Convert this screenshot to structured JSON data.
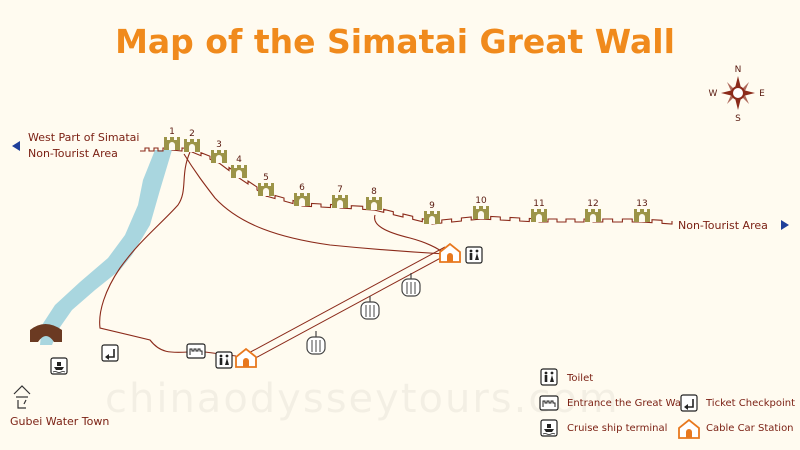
{
  "title": "Map of the Simatai Great Wall",
  "compass": {
    "n": "N",
    "s": "S",
    "e": "E",
    "w": "W"
  },
  "labels": {
    "west_line1": "West Part of Simatai",
    "west_line2": "Non-Tourist Area",
    "east": "Non-Tourist Area",
    "town": "Gubei Water Town"
  },
  "towers": [
    "1",
    "2",
    "3",
    "4",
    "5",
    "6",
    "7",
    "8",
    "9",
    "10",
    "11",
    "12",
    "13"
  ],
  "legend": {
    "toilet": "Toilet",
    "entrance": "Entrance the Great Wall",
    "ticket": "Ticket Checkpoint",
    "cruise": "Cruise ship terminal",
    "cable": "Cable Car Station"
  },
  "watermark": "chinaodysseytours.com",
  "icons": {
    "toilet": "toilet-icon",
    "entrance": "entrance-icon",
    "ticket": "ticket-checkpoint-icon",
    "cruise": "cruise-terminal-icon",
    "cable": "cable-car-station-icon",
    "tower": "watchtower-icon",
    "gondola": "gondola-icon",
    "town": "town-icon"
  },
  "colors": {
    "title": "#f08a1c",
    "wall": "#8b2a1a",
    "tower": "#9c9448",
    "river": "#a9d6df",
    "label": "#7a1f12",
    "arrow": "#1f3f9a",
    "cable": "#e8781e"
  }
}
